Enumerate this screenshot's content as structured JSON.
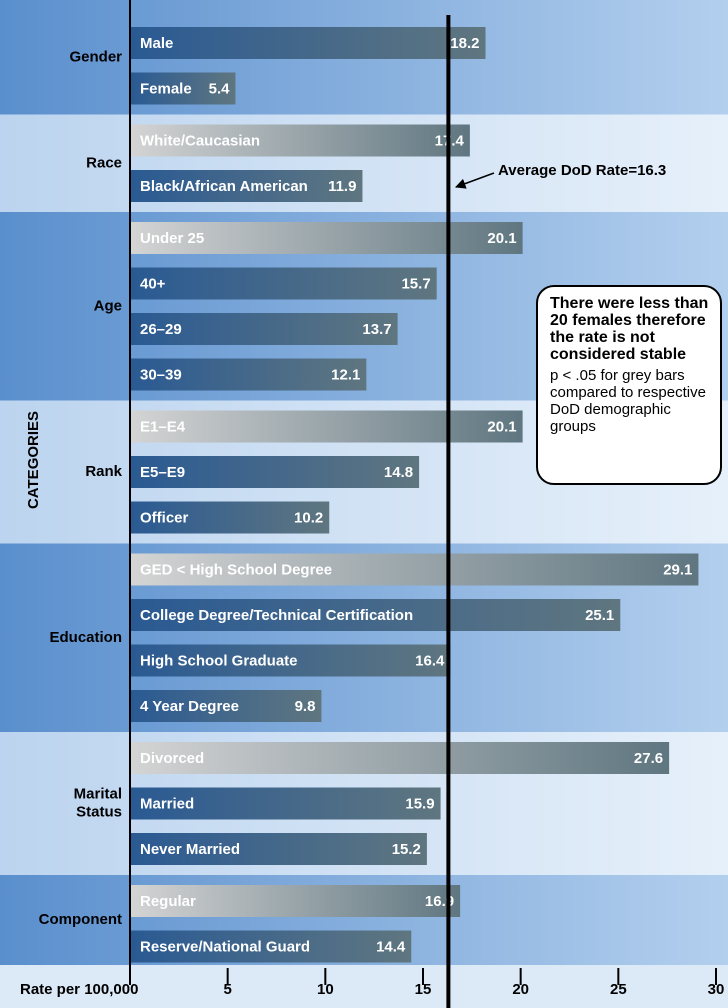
{
  "chart_data": {
    "type": "bar",
    "orientation": "horizontal",
    "y_label": "CATEGORIES",
    "x_label": "Rate per 100,000",
    "xlim": [
      0,
      30
    ],
    "xticks": [
      5,
      10,
      15,
      20,
      25,
      30
    ],
    "average": 16.3,
    "annotation": "Average DoD Rate=16.3",
    "note": "There were less than 20 females therefore the rate is not considered stable",
    "footnote": "p < .05 for grey bars compared to respective DoD demographic groups",
    "groups": [
      {
        "name": "Gender",
        "categories": [
          "Male",
          "Female"
        ],
        "values": [
          18.2,
          5.4
        ],
        "colors": [
          "#2a5a93",
          "#2a5a93"
        ]
      },
      {
        "name": "Race",
        "categories": [
          "White/Caucasian",
          "Black/African American"
        ],
        "values": [
          17.4,
          11.9
        ],
        "colors": [
          "#d4d4d4",
          "#2a5a93"
        ]
      },
      {
        "name": "Age",
        "categories": [
          "Under 25",
          "40+",
          "26–29",
          "30–39"
        ],
        "values": [
          20.1,
          15.7,
          13.7,
          12.1
        ],
        "colors": [
          "#d4d4d4",
          "#2a5a93",
          "#2a5a93",
          "#2a5a93"
        ]
      },
      {
        "name": "Rank",
        "categories": [
          "E1–E4",
          "E5–E9",
          "Officer"
        ],
        "values": [
          20.1,
          14.8,
          10.2
        ],
        "colors": [
          "#d4d4d4",
          "#2a5a93",
          "#2a5a93"
        ]
      },
      {
        "name": "Education",
        "categories": [
          "GED < High School Degree",
          "College Degree/Technical Certification",
          "High School Graduate",
          "4 Year Degree"
        ],
        "values": [
          29.1,
          25.1,
          16.4,
          9.8
        ],
        "colors": [
          "#d4d4d4",
          "#2a5a93",
          "#2a5a93",
          "#2a5a93"
        ]
      },
      {
        "name": "Marital Status",
        "categories": [
          "Divorced",
          "Married",
          "Never Married"
        ],
        "values": [
          27.6,
          15.9,
          15.2
        ],
        "colors": [
          "#d4d4d4",
          "#2a5a93",
          "#2a5a93"
        ]
      },
      {
        "name": "Component",
        "categories": [
          "Regular",
          "Reserve/National Guard"
        ],
        "values": [
          16.9,
          14.4
        ],
        "colors": [
          "#d4d4d4",
          "#2a5a93"
        ]
      }
    ]
  }
}
